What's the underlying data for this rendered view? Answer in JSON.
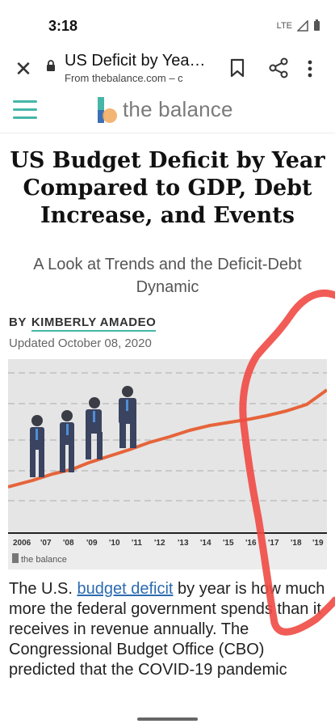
{
  "status_bar": {
    "time": "3:18",
    "network": "LTE"
  },
  "toolbar": {
    "page_title": "US Deficit by Yea…",
    "page_url": "From thebalance.com – c"
  },
  "site": {
    "logo_text": "the balance",
    "brand_color": "#46b6a7"
  },
  "article": {
    "headline": "US Budget Deficit by Year Compared to GDP, Debt Increase, and Events",
    "subheadline": "A Look at Trends and the Deficit-Debt Dynamic",
    "by_label": "BY",
    "author": "KIMBERLY AMADEO",
    "updated": "Updated October 08, 2020",
    "hero": {
      "years": [
        "2006",
        "'07",
        "'08",
        "'09",
        "'10",
        "'11",
        "'12",
        "'13",
        "'14",
        "'15",
        "'16",
        "'17",
        "'18",
        "'19"
      ],
      "watermark": "the balance"
    },
    "body": {
      "p1_before": "The U.S.",
      "p1_link": "budget deficit",
      "p1_after": "by year is how much more the federal government spends than it receives in revenue annually. The Congressional Budget Office (CBO) predicted that the COVID-19 pandemic"
    }
  },
  "colors": {
    "annotation": "#f04a45",
    "trend_line": "#e6643a",
    "chart_bg": "#e5e5e5"
  }
}
